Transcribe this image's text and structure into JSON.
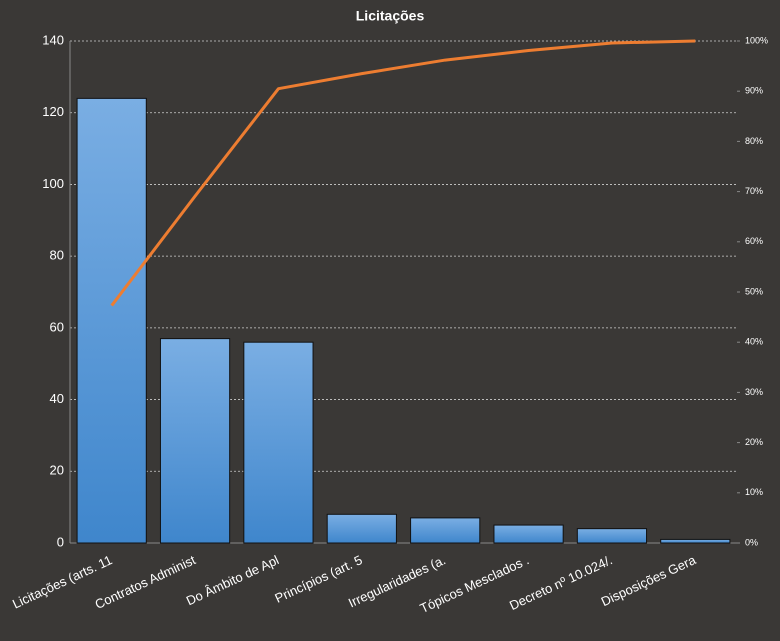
{
  "chart_data": {
    "type": "pareto",
    "title": "Licitações",
    "categories": [
      "Licitações (arts. 11",
      "Contratos Administ",
      "Do Âmbito de Apl",
      "Princípios (art. 5",
      "Irregularidades (a.",
      "Tópicos Mesclados  .",
      "Decreto nº 10.024/.",
      "Disposições Gera"
    ],
    "series": [
      {
        "type": "bar",
        "color": "#4a8fd6",
        "values": [
          124,
          57,
          56,
          8,
          7,
          5,
          4,
          1
        ]
      },
      {
        "type": "line",
        "color": "#ed7d31",
        "axis": "y2",
        "values": [
          47.3,
          69.1,
          90.5,
          93.5,
          96.2,
          98.1,
          99.6,
          100
        ]
      }
    ],
    "ylim": [
      0,
      140
    ],
    "yticks": [
      0,
      20,
      40,
      60,
      80,
      100,
      120,
      140
    ],
    "y2lim": [
      0,
      100
    ],
    "y2ticks": [
      {
        "value": 0,
        "label": "0%"
      },
      {
        "value": 10,
        "label": "10%"
      },
      {
        "value": 20,
        "label": "20%"
      },
      {
        "value": 30,
        "label": "30%"
      },
      {
        "value": 40,
        "label": "40%"
      },
      {
        "value": 50,
        "label": "50%"
      },
      {
        "value": 60,
        "label": "60%"
      },
      {
        "value": 70,
        "label": "70%"
      },
      {
        "value": 80,
        "label": "80%"
      },
      {
        "value": 90,
        "label": "90%"
      },
      {
        "value": 100,
        "label": "100%"
      }
    ],
    "grid": true
  }
}
